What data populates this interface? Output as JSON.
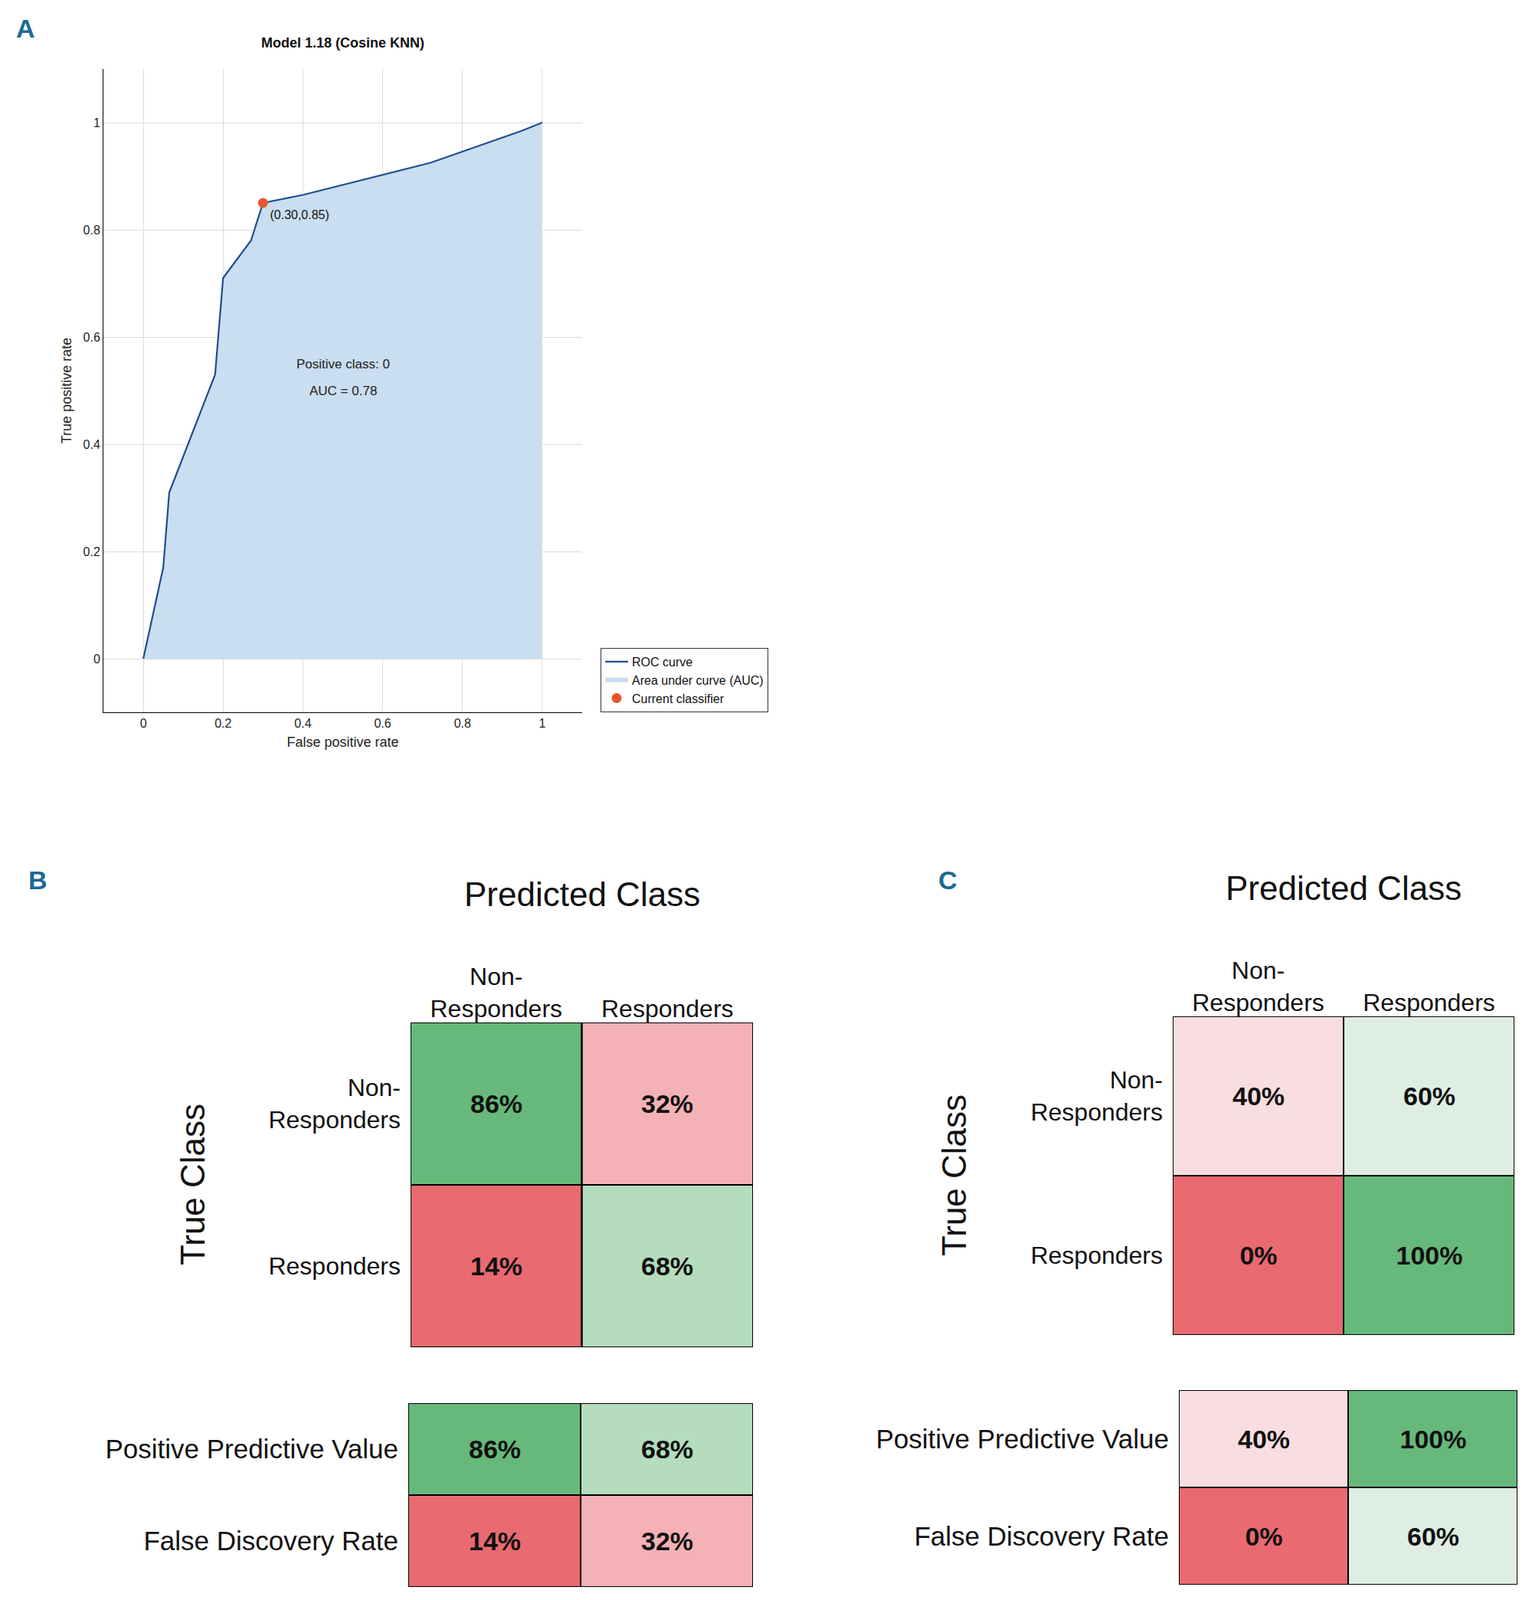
{
  "chart_data": [
    {
      "panel": "A",
      "type": "line",
      "title": "Model 1.18 (Cosine KNN)",
      "x_label": "False positive rate",
      "y_label": "True positive rate",
      "xlim": [
        -0.1,
        1.1
      ],
      "ylim": [
        -0.1,
        1.1
      ],
      "xticks": [
        0,
        0.2,
        0.4,
        0.6,
        0.8,
        1
      ],
      "yticks": [
        0,
        0.2,
        0.4,
        0.6,
        0.8,
        1
      ],
      "grid": true,
      "legend": "bottom right",
      "series": [
        {
          "name": "ROC curve",
          "type": "line",
          "line_style": "solid",
          "color": "#1f4e8c",
          "x": [
            0,
            0.05,
            0.065,
            0.18,
            0.2,
            0.27,
            0.3,
            0.4,
            0.72,
            0.95,
            1
          ],
          "values": [
            0,
            0.17,
            0.31,
            0.53,
            0.71,
            0.78,
            0.85,
            0.865,
            0.925,
            0.985,
            1
          ]
        },
        {
          "name": "Area under curve (AUC)",
          "type": "area",
          "color": "#c9def0",
          "x": [
            0,
            0.05,
            0.065,
            0.18,
            0.2,
            0.27,
            0.3,
            0.4,
            0.72,
            0.95,
            1
          ],
          "values": [
            0,
            0.17,
            0.31,
            0.53,
            0.71,
            0.78,
            0.85,
            0.865,
            0.925,
            0.985,
            1
          ]
        },
        {
          "name": "Current classifier",
          "type": "scatter",
          "marker": "circle",
          "color": "#e4572e",
          "x": [
            0.3
          ],
          "values": [
            0.85
          ],
          "value_labels": [
            "(0.30,0.85)"
          ]
        }
      ],
      "annotations": [
        {
          "text": "Positive class: 0",
          "x": 0.5,
          "y": 0.55
        },
        {
          "text": "AUC = 0.78",
          "x": 0.5,
          "y": 0.5
        }
      ]
    },
    {
      "panel": "B",
      "type": "heatmap",
      "x_label": "Predicted Class",
      "y_label": "True Class",
      "categories": [
        "Non-\nResponders",
        "Responders"
      ],
      "rows": [
        "Non-\nResponders",
        "Responders"
      ],
      "cells": [
        [
          86,
          32
        ],
        [
          14,
          68
        ]
      ],
      "value_labels": [
        [
          "86%",
          "32%"
        ],
        [
          "14%",
          "68%"
        ]
      ],
      "colors": [
        [
          "#66b97a",
          "#f4b1b6"
        ],
        [
          "#e96a70",
          "#b4dcbd"
        ]
      ],
      "data_labels": true
    },
    {
      "type": "heatmap",
      "rows": [
        "Positive Predictive Value",
        "False Discovery Rate"
      ],
      "cells": [
        [
          86,
          68
        ],
        [
          14,
          32
        ]
      ],
      "value_labels": [
        [
          "86%",
          "68%"
        ],
        [
          "14%",
          "32%"
        ]
      ],
      "colors": [
        [
          "#66b97a",
          "#b4dcbd"
        ],
        [
          "#e96a70",
          "#f4b1b6"
        ]
      ],
      "data_labels": true,
      "tick_labels": "y"
    },
    {
      "panel": "C",
      "type": "heatmap",
      "x_label": "Predicted Class",
      "y_label": "True Class",
      "categories": [
        "Non-\nResponders",
        "Responders"
      ],
      "rows": [
        "Non-\nResponders",
        "Responders"
      ],
      "cells": [
        [
          40,
          60
        ],
        [
          0,
          100
        ]
      ],
      "value_labels": [
        [
          "40%",
          "60%"
        ],
        [
          "0%",
          "100%"
        ]
      ],
      "colors": [
        [
          "#fadde0",
          "#dfeee2"
        ],
        [
          "#e96a70",
          "#66b97a"
        ]
      ],
      "data_labels": true
    },
    {
      "type": "heatmap",
      "rows": [
        "Positive Predictive Value",
        "False Discovery Rate"
      ],
      "cells": [
        [
          40,
          100
        ],
        [
          0,
          60
        ]
      ],
      "value_labels": [
        [
          "40%",
          "100%"
        ],
        [
          "0%",
          "60%"
        ]
      ],
      "colors": [
        [
          "#fadde0",
          "#66b97a"
        ],
        [
          "#e96a70",
          "#dfeee2"
        ]
      ],
      "data_labels": true,
      "tick_labels": "y"
    }
  ]
}
